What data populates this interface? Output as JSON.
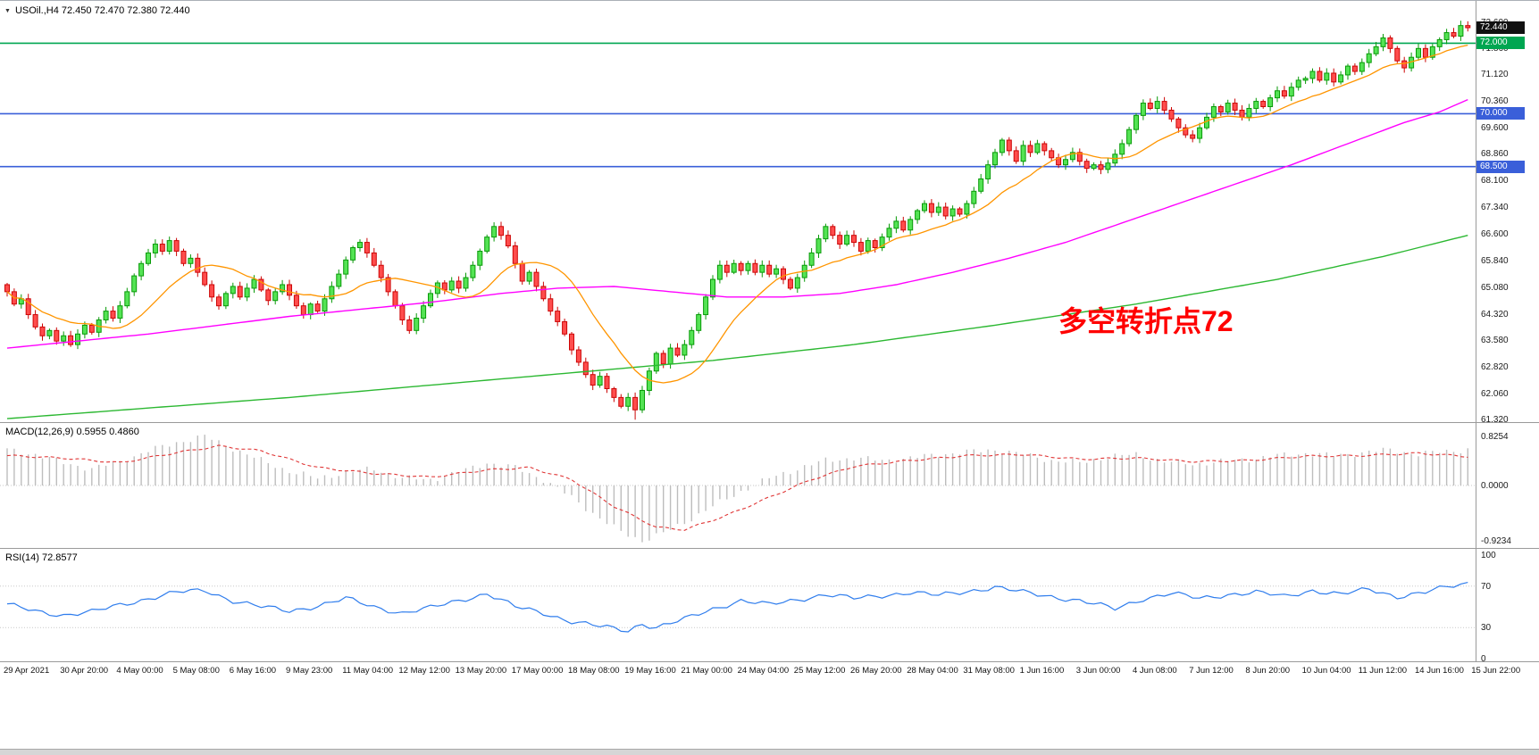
{
  "chart": {
    "symbol_line": "USOil.,H4 72.450 72.470 72.380 72.440",
    "annotation": "多空转折点72"
  },
  "macd": {
    "label": "MACD(12,26,9) 0.5955 0.4860"
  },
  "rsi": {
    "label": "RSI(14) 72.8577"
  },
  "colors": {
    "candle_up": "#54e354",
    "candle_up_border": "#089a08",
    "candle_down": "#ff4d4d",
    "candle_down_border": "#cc0505",
    "ma_fast": "#ff9500",
    "ma_mid": "#ff00ff",
    "ma_slow": "#2cb832",
    "level_green": "#00a651",
    "level_blue": "#3a5fd9",
    "badge_current_bg": "#111111",
    "macd_hist": "#bdbdbd",
    "macd_signal": "#e03636",
    "rsi_line": "#2f7ded",
    "annotation_red": "#ff0000",
    "separator": "#9a9a9a",
    "dotted_level": "#c8c8c8"
  },
  "chart_data": {
    "type": "candlestick+indicators",
    "symbol": "USOil",
    "timeframe": "H4",
    "current_bar": {
      "open": 72.45,
      "high": 72.47,
      "low": 72.38,
      "close": 72.44
    },
    "ylim": [
      61.3,
      73.2
    ],
    "price_axis_ticks": [
      "72.600",
      "71.860",
      "71.120",
      "70.360",
      "69.600",
      "68.860",
      "68.100",
      "67.340",
      "66.600",
      "65.840",
      "65.080",
      "64.320",
      "63.580",
      "62.820",
      "62.060",
      "61.320"
    ],
    "badges": [
      {
        "label": "72.440",
        "price": 72.44,
        "bg": "#111111"
      },
      {
        "label": "72.000",
        "price": 72.0,
        "bg": "#00a651"
      },
      {
        "label": "70.000",
        "price": 70.0,
        "bg": "#3a5fd9"
      },
      {
        "label": "68.500",
        "price": 68.5,
        "bg": "#3a5fd9"
      }
    ],
    "h_levels": [
      {
        "price": 72.0,
        "color": "#00a651"
      },
      {
        "price": 70.0,
        "color": "#3a5fd9"
      },
      {
        "price": 68.5,
        "color": "#3a5fd9"
      }
    ],
    "candles": {
      "first_open": 65.15,
      "closes": [
        64.95,
        64.6,
        64.75,
        64.3,
        63.95,
        63.7,
        63.85,
        63.55,
        63.7,
        63.45,
        63.75,
        64.0,
        63.8,
        64.15,
        64.4,
        64.2,
        64.55,
        64.95,
        65.4,
        65.75,
        66.05,
        66.3,
        66.1,
        66.4,
        66.1,
        65.75,
        65.9,
        65.5,
        65.15,
        64.8,
        64.55,
        64.9,
        65.1,
        64.8,
        65.05,
        65.3,
        65.0,
        64.7,
        64.95,
        65.15,
        64.85,
        64.55,
        64.3,
        64.6,
        64.4,
        64.75,
        65.1,
        65.45,
        65.85,
        66.2,
        66.35,
        66.05,
        65.7,
        65.35,
        64.95,
        64.55,
        64.15,
        63.85,
        64.2,
        64.55,
        64.9,
        65.2,
        65.0,
        65.25,
        65.05,
        65.35,
        65.7,
        66.1,
        66.5,
        66.8,
        66.55,
        66.25,
        65.75,
        65.25,
        65.5,
        65.1,
        64.75,
        64.4,
        64.1,
        63.75,
        63.3,
        62.95,
        62.6,
        62.3,
        62.55,
        62.2,
        61.95,
        61.7,
        61.95,
        61.6,
        62.15,
        62.7,
        63.2,
        62.9,
        63.35,
        63.15,
        63.45,
        63.85,
        64.3,
        64.8,
        65.3,
        65.7,
        65.5,
        65.75,
        65.55,
        65.75,
        65.5,
        65.7,
        65.45,
        65.6,
        65.3,
        65.05,
        65.35,
        65.7,
        66.05,
        66.45,
        66.8,
        66.55,
        66.3,
        66.55,
        66.35,
        66.1,
        66.4,
        66.2,
        66.5,
        66.75,
        66.95,
        66.7,
        67.0,
        67.25,
        67.45,
        67.2,
        67.35,
        67.1,
        67.3,
        67.15,
        67.45,
        67.8,
        68.15,
        68.55,
        68.9,
        69.25,
        68.95,
        68.65,
        69.1,
        68.9,
        69.15,
        68.95,
        68.75,
        68.55,
        68.7,
        68.9,
        68.65,
        68.45,
        68.55,
        68.42,
        68.6,
        68.85,
        69.15,
        69.55,
        69.95,
        70.3,
        70.15,
        70.35,
        70.1,
        69.85,
        69.6,
        69.4,
        69.3,
        69.6,
        69.9,
        70.2,
        70.05,
        70.3,
        70.1,
        69.9,
        70.15,
        70.35,
        70.2,
        70.45,
        70.65,
        70.5,
        70.75,
        70.95,
        71.0,
        71.2,
        70.95,
        71.15,
        70.9,
        71.1,
        71.35,
        71.2,
        71.45,
        71.7,
        71.9,
        72.15,
        71.85,
        71.5,
        71.3,
        71.6,
        71.85,
        71.6,
        71.9,
        72.1,
        72.3,
        72.2,
        72.5,
        72.44
      ],
      "wick_overrides": {
        "69": {
          "high": 66.92
        },
        "89": {
          "low": 61.32
        },
        "206": {
          "high": 72.62
        },
        "207": {
          "high": 72.58
        }
      }
    },
    "ma_mid_anchors": [
      [
        0,
        63.35
      ],
      [
        10,
        63.55
      ],
      [
        20,
        63.75
      ],
      [
        30,
        64.0
      ],
      [
        40,
        64.25
      ],
      [
        50,
        64.45
      ],
      [
        60,
        64.65
      ],
      [
        70,
        64.9
      ],
      [
        78,
        65.05
      ],
      [
        86,
        65.1
      ],
      [
        94,
        64.95
      ],
      [
        102,
        64.8
      ],
      [
        110,
        64.8
      ],
      [
        118,
        64.9
      ],
      [
        126,
        65.15
      ],
      [
        134,
        65.5
      ],
      [
        142,
        65.9
      ],
      [
        150,
        66.35
      ],
      [
        158,
        66.9
      ],
      [
        166,
        67.45
      ],
      [
        174,
        68.0
      ],
      [
        182,
        68.55
      ],
      [
        190,
        69.15
      ],
      [
        198,
        69.75
      ],
      [
        203,
        70.05
      ],
      [
        207,
        70.4
      ]
    ],
    "ma_slow_anchors": [
      [
        0,
        61.35
      ],
      [
        20,
        61.65
      ],
      [
        40,
        61.95
      ],
      [
        60,
        62.3
      ],
      [
        80,
        62.65
      ],
      [
        100,
        63.0
      ],
      [
        120,
        63.45
      ],
      [
        140,
        64.0
      ],
      [
        160,
        64.6
      ],
      [
        180,
        65.3
      ],
      [
        195,
        65.95
      ],
      [
        207,
        66.55
      ]
    ],
    "macd": {
      "last_main": 0.5955,
      "last_signal": 0.486,
      "ylim": [
        -0.9234,
        0.8254
      ],
      "axis_ticks": [
        "0.8254",
        "0.0000",
        "-0.9234"
      ],
      "hist_anchors": [
        [
          0,
          0.6
        ],
        [
          4,
          0.52
        ],
        [
          8,
          0.38
        ],
        [
          12,
          0.28
        ],
        [
          16,
          0.4
        ],
        [
          20,
          0.58
        ],
        [
          24,
          0.72
        ],
        [
          28,
          0.8254
        ],
        [
          32,
          0.62
        ],
        [
          36,
          0.42
        ],
        [
          40,
          0.24
        ],
        [
          44,
          0.12
        ],
        [
          48,
          0.22
        ],
        [
          52,
          0.28
        ],
        [
          56,
          0.12
        ],
        [
          60,
          0.1
        ],
        [
          64,
          0.22
        ],
        [
          68,
          0.38
        ],
        [
          72,
          0.3
        ],
        [
          76,
          0.1
        ],
        [
          80,
          -0.2
        ],
        [
          84,
          -0.55
        ],
        [
          87,
          -0.78
        ],
        [
          90,
          -0.9234
        ],
        [
          93,
          -0.8
        ],
        [
          96,
          -0.62
        ],
        [
          100,
          -0.35
        ],
        [
          104,
          -0.1
        ],
        [
          108,
          0.12
        ],
        [
          112,
          0.28
        ],
        [
          116,
          0.42
        ],
        [
          120,
          0.46
        ],
        [
          124,
          0.42
        ],
        [
          128,
          0.46
        ],
        [
          132,
          0.52
        ],
        [
          136,
          0.56
        ],
        [
          140,
          0.6
        ],
        [
          144,
          0.52
        ],
        [
          148,
          0.42
        ],
        [
          152,
          0.38
        ],
        [
          156,
          0.48
        ],
        [
          160,
          0.52
        ],
        [
          164,
          0.4
        ],
        [
          168,
          0.36
        ],
        [
          172,
          0.4
        ],
        [
          176,
          0.44
        ],
        [
          180,
          0.5
        ],
        [
          184,
          0.54
        ],
        [
          188,
          0.5
        ],
        [
          192,
          0.55
        ],
        [
          196,
          0.6
        ],
        [
          200,
          0.52
        ],
        [
          204,
          0.58
        ],
        [
          207,
          0.5955
        ]
      ],
      "signal_anchors": [
        [
          0,
          0.5
        ],
        [
          8,
          0.46
        ],
        [
          16,
          0.38
        ],
        [
          24,
          0.55
        ],
        [
          30,
          0.66
        ],
        [
          36,
          0.58
        ],
        [
          44,
          0.3
        ],
        [
          52,
          0.2
        ],
        [
          60,
          0.14
        ],
        [
          68,
          0.26
        ],
        [
          74,
          0.3
        ],
        [
          80,
          0.1
        ],
        [
          86,
          -0.35
        ],
        [
          92,
          -0.7
        ],
        [
          96,
          -0.74
        ],
        [
          102,
          -0.5
        ],
        [
          108,
          -0.2
        ],
        [
          114,
          0.1
        ],
        [
          120,
          0.32
        ],
        [
          128,
          0.42
        ],
        [
          136,
          0.5
        ],
        [
          144,
          0.52
        ],
        [
          152,
          0.44
        ],
        [
          160,
          0.46
        ],
        [
          168,
          0.4
        ],
        [
          176,
          0.42
        ],
        [
          184,
          0.49
        ],
        [
          192,
          0.5
        ],
        [
          200,
          0.54
        ],
        [
          207,
          0.486
        ]
      ]
    },
    "rsi": {
      "last": 72.8577,
      "ylim": [
        0,
        100
      ],
      "levels": [
        70,
        30
      ],
      "axis_ticks": [
        "100",
        "70",
        "30",
        "0"
      ],
      "anchors": [
        [
          0,
          52
        ],
        [
          4,
          46
        ],
        [
          8,
          42
        ],
        [
          12,
          45
        ],
        [
          16,
          52
        ],
        [
          20,
          58
        ],
        [
          24,
          64
        ],
        [
          28,
          66
        ],
        [
          32,
          56
        ],
        [
          36,
          50
        ],
        [
          40,
          46
        ],
        [
          44,
          51
        ],
        [
          48,
          58
        ],
        [
          52,
          50
        ],
        [
          56,
          44
        ],
        [
          60,
          49
        ],
        [
          64,
          56
        ],
        [
          68,
          63
        ],
        [
          72,
          50
        ],
        [
          76,
          44
        ],
        [
          80,
          36
        ],
        [
          84,
          31
        ],
        [
          88,
          27
        ],
        [
          90,
          34
        ],
        [
          92,
          30
        ],
        [
          96,
          38
        ],
        [
          100,
          48
        ],
        [
          104,
          56
        ],
        [
          108,
          52
        ],
        [
          112,
          57
        ],
        [
          116,
          62
        ],
        [
          120,
          58
        ],
        [
          124,
          61
        ],
        [
          128,
          64
        ],
        [
          132,
          61
        ],
        [
          136,
          65
        ],
        [
          140,
          69
        ],
        [
          144,
          64
        ],
        [
          148,
          60
        ],
        [
          152,
          56
        ],
        [
          157,
          48
        ],
        [
          161,
          58
        ],
        [
          165,
          63
        ],
        [
          169,
          58
        ],
        [
          173,
          62
        ],
        [
          177,
          64
        ],
        [
          181,
          60
        ],
        [
          185,
          66
        ],
        [
          189,
          62
        ],
        [
          193,
          67
        ],
        [
          197,
          60
        ],
        [
          201,
          64
        ],
        [
          204,
          69
        ],
        [
          207,
          72.86
        ]
      ]
    },
    "time_labels": [
      "29 Apr 2021",
      "30 Apr 20:00",
      "4 May 00:00",
      "5 May 08:00",
      "6 May 16:00",
      "9 May 23:00",
      "11 May 04:00",
      "12 May 12:00",
      "13 May 20:00",
      "17 May 00:00",
      "18 May 08:00",
      "19 May 16:00",
      "21 May 00:00",
      "24 May 04:00",
      "25 May 12:00",
      "26 May 20:00",
      "28 May 04:00",
      "31 May 08:00",
      "1 Jun 16:00",
      "3 Jun 00:00",
      "4 Jun 08:00",
      "7 Jun 12:00",
      "8 Jun 20:00",
      "10 Jun 04:00",
      "11 Jun 12:00",
      "14 Jun 16:00",
      "15 Jun 22:00"
    ]
  }
}
